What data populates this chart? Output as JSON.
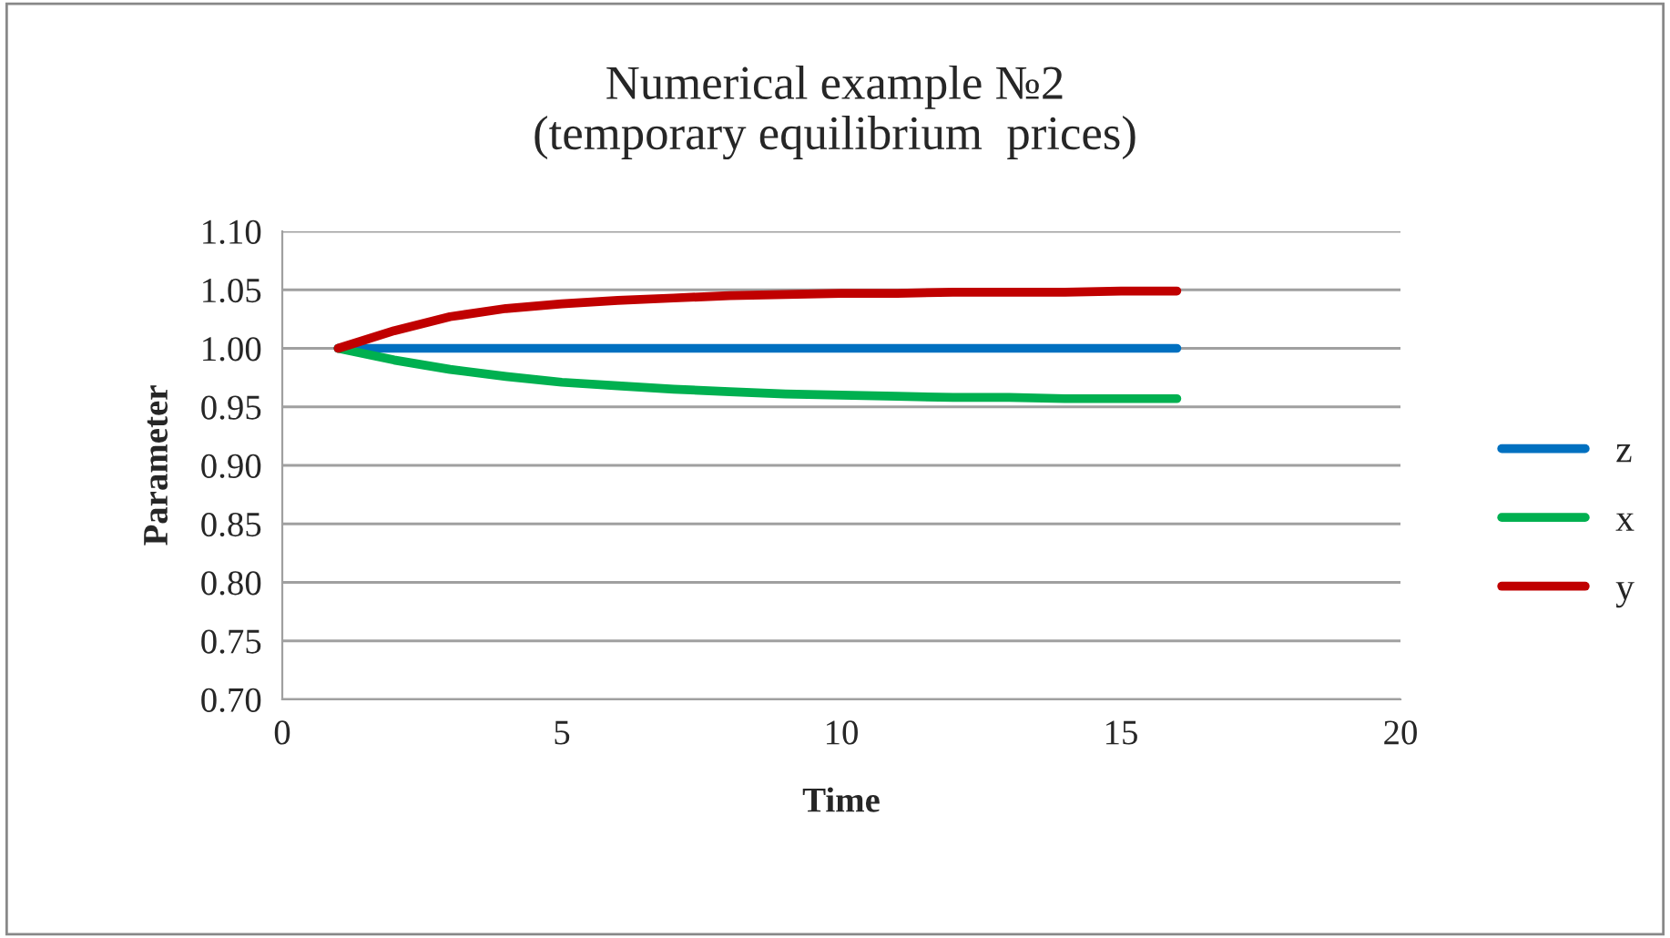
{
  "chart_data": {
    "type": "line",
    "title": "Numerical example №2\n(temporary equilibrium  prices)",
    "xlabel": "Time",
    "ylabel": "Parameter",
    "x": [
      1,
      2,
      3,
      4,
      5,
      6,
      7,
      8,
      9,
      10,
      11,
      12,
      13,
      14,
      15,
      16
    ],
    "series": [
      {
        "name": "z",
        "color": "#0070c0",
        "values": [
          1.0,
          1.0,
          1.0,
          1.0,
          1.0,
          1.0,
          1.0,
          1.0,
          1.0,
          1.0,
          1.0,
          1.0,
          1.0,
          1.0,
          1.0,
          1.0
        ]
      },
      {
        "name": "x",
        "color": "#00b050",
        "values": [
          1.0,
          0.99,
          0.982,
          0.976,
          0.971,
          0.968,
          0.965,
          0.963,
          0.961,
          0.96,
          0.959,
          0.958,
          0.958,
          0.957,
          0.957,
          0.957
        ]
      },
      {
        "name": "y",
        "color": "#c00000",
        "values": [
          1.0,
          1.015,
          1.027,
          1.034,
          1.038,
          1.041,
          1.043,
          1.045,
          1.046,
          1.047,
          1.047,
          1.048,
          1.048,
          1.048,
          1.049,
          1.049
        ]
      }
    ],
    "xlim": [
      0,
      20
    ],
    "xticks": [
      0,
      5,
      10,
      15,
      20
    ],
    "ylim": [
      0.7,
      1.1
    ],
    "yticks": [
      {
        "value": 0.7,
        "label": "0.70"
      },
      {
        "value": 0.75,
        "label": "0.75"
      },
      {
        "value": 0.8,
        "label": "0.80"
      },
      {
        "value": 0.85,
        "label": "0.85"
      },
      {
        "value": 0.9,
        "label": "0.90"
      },
      {
        "value": 0.95,
        "label": "0.95"
      },
      {
        "value": 1.0,
        "label": "1.00"
      },
      {
        "value": 1.05,
        "label": "1.05"
      },
      {
        "value": 1.1,
        "label": "1.10"
      }
    ],
    "grid": "y",
    "legend": "right",
    "marker": "none",
    "line_style": "solid"
  }
}
